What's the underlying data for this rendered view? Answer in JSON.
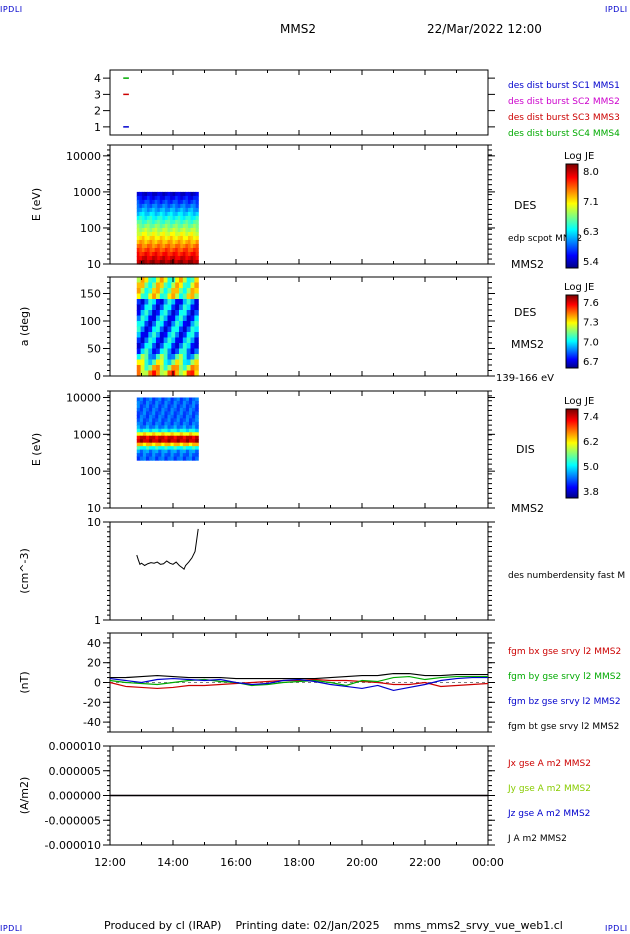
{
  "corner_label": "IPDLI",
  "header": {
    "spacecraft": "MMS2",
    "datetime": "22/Mar/2022 12:00"
  },
  "footer": {
    "producer": "Produced by cl (IRAP)",
    "printing_date": "Printing date: 02/Jan/2025",
    "filename": "mms_mms2_srvy_vue_web1.cl"
  },
  "time_axis": {
    "ticks": [
      "12:00",
      "14:00",
      "16:00",
      "18:00",
      "20:00",
      "22:00",
      "00:00"
    ],
    "range_hours": [
      12,
      24
    ]
  },
  "chart_data": [
    {
      "type": "scatter",
      "panel": "burst",
      "yticks": [
        "4",
        "3",
        "2",
        "1"
      ],
      "ylim": [
        0.5,
        4.5
      ],
      "series": [
        {
          "name": "des dist burst SC1 MMS1",
          "color": "#0000cc",
          "y": 1,
          "x_hours": [
            12.42,
            12.6
          ]
        },
        {
          "name": "des dist burst SC2 MMS2",
          "color": "#cc00cc",
          "y": 2,
          "x_hours": []
        },
        {
          "name": "des dist burst SC3 MMS3",
          "color": "#cc0000",
          "y": 3,
          "x_hours": [
            12.42,
            12.6
          ]
        },
        {
          "name": "des dist burst SC4 MMS4",
          "color": "#00aa00",
          "y": 4,
          "x_hours": [
            12.42,
            12.6
          ]
        }
      ]
    },
    {
      "type": "heatmap",
      "panel": "des_energy",
      "ylabel": "E (eV)",
      "yscale": "log",
      "ylim": [
        10,
        20000
      ],
      "yticks": [
        "10000",
        "1000",
        "100",
        "10"
      ],
      "data_x_hours": [
        12.85,
        14.8
      ],
      "data_y_range": [
        10,
        1000
      ],
      "right_labels": [
        "DES",
        "edp scpot MMS2",
        "MMS2"
      ],
      "colorbar": {
        "title": "Log JE",
        "ticks": [
          "8.0",
          "7.1",
          "6.3",
          "5.4"
        ]
      }
    },
    {
      "type": "heatmap",
      "panel": "des_pitch",
      "ylabel": "a (deg)",
      "ylim": [
        0,
        180
      ],
      "yticks": [
        "150",
        "100",
        "50",
        "0"
      ],
      "data_x_hours": [
        12.85,
        14.8
      ],
      "right_labels": [
        "DES",
        "MMS2",
        "139-166 eV"
      ],
      "colorbar": {
        "title": "Log JE",
        "ticks": [
          "7.6",
          "7.3",
          "7.0",
          "6.7"
        ]
      }
    },
    {
      "type": "heatmap",
      "panel": "dis_energy",
      "ylabel": "E (eV)",
      "yscale": "log",
      "ylim": [
        10,
        15000
      ],
      "yticks": [
        "10000",
        "1000",
        "100",
        "10"
      ],
      "data_x_hours": [
        12.85,
        14.8
      ],
      "data_y_range": [
        200,
        10000
      ],
      "right_labels": [
        "DIS",
        "MMS2"
      ],
      "colorbar": {
        "title": "Log JE",
        "ticks": [
          "7.4",
          "6.2",
          "5.0",
          "3.8"
        ]
      }
    },
    {
      "type": "line",
      "panel": "density",
      "ylabel": "(cm^-3)",
      "yscale": "log",
      "ylim": [
        1,
        10
      ],
      "yticks": [
        "10",
        "1"
      ],
      "series": [
        {
          "name": "des numberdensity fast M",
          "color": "#000000",
          "x_hours": [
            12.85,
            12.9,
            12.95,
            13.0,
            13.1,
            13.2,
            13.3,
            13.4,
            13.5,
            13.6,
            13.7,
            13.8,
            13.9,
            14.0,
            14.1,
            14.2,
            14.3,
            14.35,
            14.4,
            14.5,
            14.6,
            14.7,
            14.75,
            14.8
          ],
          "values": [
            4.6,
            4.1,
            3.7,
            3.8,
            3.6,
            3.75,
            3.85,
            3.8,
            3.9,
            3.7,
            3.75,
            4.0,
            3.8,
            3.7,
            3.9,
            3.6,
            3.4,
            3.3,
            3.6,
            3.9,
            4.3,
            5.0,
            6.5,
            8.5
          ]
        }
      ]
    },
    {
      "type": "line",
      "panel": "magnetic_field",
      "ylabel": "(nT)",
      "ylim": [
        -50,
        50
      ],
      "yticks": [
        "40",
        "20",
        "0",
        "-20",
        "-40"
      ],
      "series": [
        {
          "name": "fgm bx gse srvy l2 MMS2",
          "color": "#cc0000",
          "x_hours": [
            12.0,
            12.5,
            13.0,
            13.5,
            14.0,
            14.5,
            15.0,
            15.5,
            16.0,
            16.5,
            17.0,
            17.5,
            18.0,
            18.5,
            19.0,
            19.5,
            20.0,
            20.5,
            21.0,
            21.5,
            22.0,
            22.5,
            23.0,
            23.5,
            24.0
          ],
          "values": [
            0,
            -4,
            -5,
            -6,
            -5,
            -3,
            -3,
            -2,
            -1,
            0,
            1,
            2,
            2,
            3,
            2,
            2,
            1,
            0,
            -2,
            -2,
            0,
            -4,
            -3,
            -2,
            -1
          ]
        },
        {
          "name": "fgm by gse srvy l2 MMS2",
          "color": "#00aa00",
          "x_hours": [
            12.0,
            12.5,
            13.0,
            13.5,
            14.0,
            14.5,
            15.0,
            15.5,
            16.0,
            16.5,
            17.0,
            17.5,
            18.0,
            18.5,
            19.0,
            19.5,
            20.0,
            20.5,
            21.0,
            21.5,
            22.0,
            22.5,
            23.0,
            23.5,
            24.0
          ],
          "values": [
            2,
            0,
            -1,
            -2,
            0,
            2,
            3,
            1,
            0,
            -3,
            -2,
            0,
            1,
            2,
            0,
            -3,
            2,
            1,
            5,
            6,
            3,
            5,
            6,
            6,
            6
          ]
        },
        {
          "name": "fgm bz gse srvy l2 MMS2",
          "color": "#0000cc",
          "x_hours": [
            12.0,
            12.5,
            13.0,
            13.5,
            14.0,
            14.5,
            15.0,
            15.5,
            16.0,
            16.5,
            17.0,
            17.5,
            18.0,
            18.5,
            19.0,
            19.5,
            20.0,
            20.5,
            21.0,
            21.5,
            22.0,
            22.5,
            23.0,
            23.5,
            24.0
          ],
          "values": [
            4,
            2,
            0,
            3,
            4,
            3,
            2,
            3,
            0,
            -2,
            -1,
            2,
            3,
            1,
            -2,
            -4,
            -6,
            -3,
            -8,
            -5,
            -2,
            2,
            4,
            5,
            5
          ]
        },
        {
          "name": "fgm bt gse srvy l2 MMS2",
          "color": "#000000",
          "x_hours": [
            12.0,
            12.5,
            13.0,
            13.5,
            14.0,
            14.5,
            15.0,
            15.5,
            16.0,
            16.5,
            17.0,
            17.5,
            18.0,
            18.5,
            19.0,
            19.5,
            20.0,
            20.5,
            21.0,
            21.5,
            22.0,
            22.5,
            23.0,
            23.5,
            24.0
          ],
          "values": [
            5,
            5,
            6,
            7,
            6,
            5,
            5,
            5,
            4,
            4,
            4,
            4,
            4,
            4,
            5,
            6,
            7,
            7,
            9,
            9,
            7,
            7,
            8,
            8,
            8
          ]
        }
      ]
    },
    {
      "type": "line",
      "panel": "current_density",
      "ylabel": "(A/m2)",
      "ylim": [
        -1e-05,
        1e-05
      ],
      "yticks": [
        "0.000010",
        "0.000005",
        "0.000000",
        "-0.000005",
        "-0.000010"
      ],
      "series": [
        {
          "name": "Jx gse A m2 MMS2",
          "color": "#cc0000",
          "x_hours": [
            12.0,
            24.0
          ],
          "values": [
            0,
            0
          ]
        },
        {
          "name": "Jy gse A m2 MMS2",
          "color": "#88cc00",
          "x_hours": [
            12.0,
            24.0
          ],
          "values": [
            0,
            0
          ]
        },
        {
          "name": "Jz gse A m2 MMS2",
          "color": "#0000cc",
          "x_hours": [
            12.0,
            24.0
          ],
          "values": [
            0,
            0
          ]
        },
        {
          "name": "J A m2 MMS2",
          "color": "#000000",
          "x_hours": [
            12.0,
            24.0
          ],
          "values": [
            0,
            0
          ]
        }
      ]
    }
  ]
}
